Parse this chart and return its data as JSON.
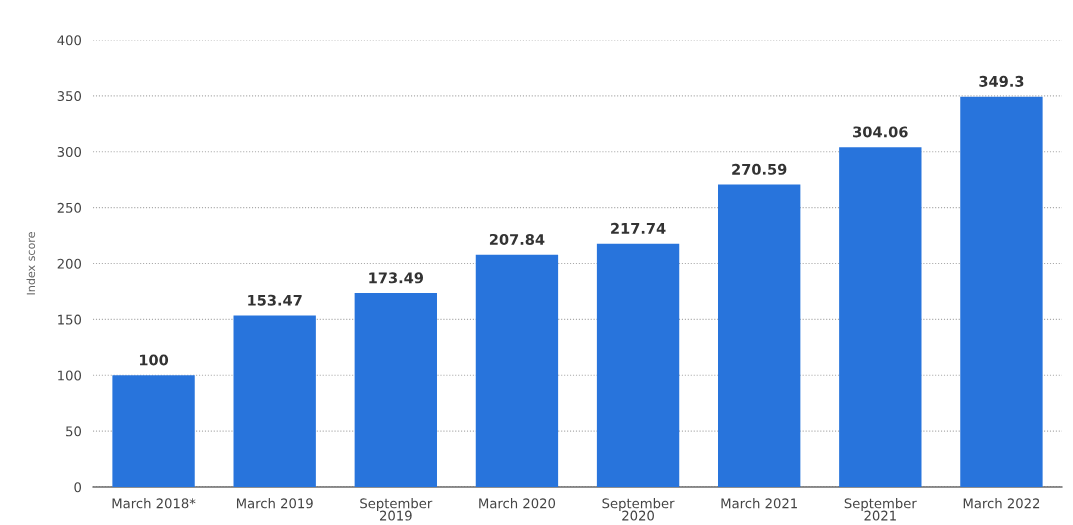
{
  "chart_data": {
    "type": "bar",
    "ylabel": "Index score",
    "categories": [
      "March 2018*",
      "March 2019",
      "September\n2019",
      "March 2020",
      "September\n2020",
      "March 2021",
      "September\n2021",
      "March 2022"
    ],
    "values": [
      100,
      153.47,
      173.49,
      207.84,
      217.74,
      270.59,
      304.06,
      349.3
    ],
    "color": "#2874dc",
    "ylim": [
      0,
      400
    ],
    "yticks": [
      0,
      50,
      100,
      150,
      200,
      250,
      300,
      350,
      400
    ],
    "grid": "y",
    "data_labels": true
  }
}
